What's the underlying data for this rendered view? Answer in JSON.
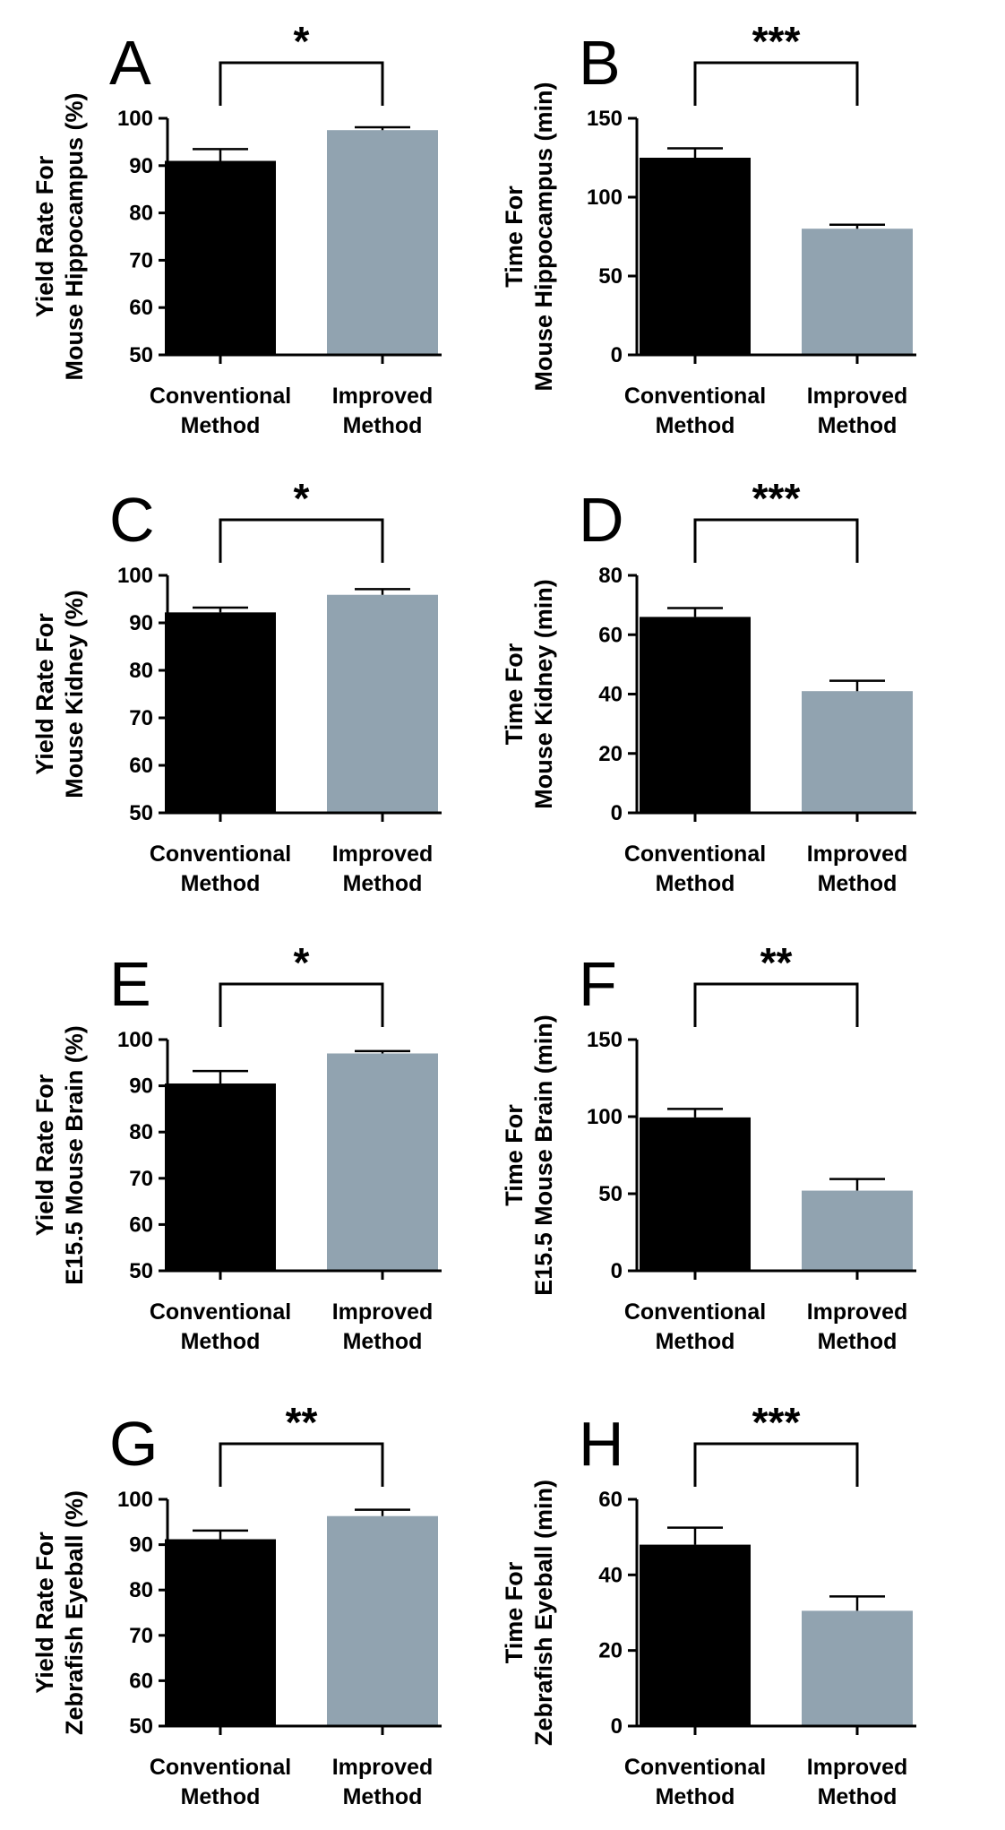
{
  "colors": {
    "conventional": "#000000",
    "improved": "#91a3b0",
    "axis": "#000000",
    "background": "#ffffff"
  },
  "chart_data": [
    {
      "panel": "A",
      "type": "bar",
      "ylabel": [
        "Yield Rate For",
        "Mouse Hippocampus (%)"
      ],
      "categories": [
        [
          "Conventional",
          "Method"
        ],
        [
          "Improved",
          "Method"
        ]
      ],
      "values": [
        91,
        97.5
      ],
      "errors": [
        2.5,
        0.6
      ],
      "ylim": [
        50,
        100
      ],
      "yticks": [
        50,
        60,
        70,
        80,
        90,
        100
      ],
      "significance": "*"
    },
    {
      "panel": "B",
      "type": "bar",
      "ylabel": [
        "Time For",
        "Mouse Hippocampus (min)"
      ],
      "categories": [
        [
          "Conventional",
          "Method"
        ],
        [
          "Improved",
          "Method"
        ]
      ],
      "values": [
        125,
        80
      ],
      "errors": [
        6,
        2.5
      ],
      "ylim": [
        0,
        150
      ],
      "yticks": [
        0,
        50,
        100,
        150
      ],
      "significance": "***"
    },
    {
      "panel": "C",
      "type": "bar",
      "ylabel": [
        "Yield Rate For",
        "Mouse Kidney (%)"
      ],
      "categories": [
        [
          "Conventional",
          "Method"
        ],
        [
          "Improved",
          "Method"
        ]
      ],
      "values": [
        92.2,
        95.9
      ],
      "errors": [
        1,
        1.2
      ],
      "ylim": [
        50,
        100
      ],
      "yticks": [
        50,
        60,
        70,
        80,
        90,
        100
      ],
      "significance": "*"
    },
    {
      "panel": "D",
      "type": "bar",
      "ylabel": [
        "Time For",
        "Mouse Kidney (min)"
      ],
      "categories": [
        [
          "Conventional",
          "Method"
        ],
        [
          "Improved",
          "Method"
        ]
      ],
      "values": [
        66,
        41
      ],
      "errors": [
        3,
        3.5
      ],
      "ylim": [
        0,
        80
      ],
      "yticks": [
        0,
        20,
        40,
        60,
        80
      ],
      "significance": "***"
    },
    {
      "panel": "E",
      "type": "bar",
      "ylabel": [
        "Yield Rate For",
        "E15.5 Mouse Brain (%)"
      ],
      "categories": [
        [
          "Conventional",
          "Method"
        ],
        [
          "Improved",
          "Method"
        ]
      ],
      "values": [
        90.5,
        97
      ],
      "errors": [
        2.7,
        0.5
      ],
      "ylim": [
        50,
        100
      ],
      "yticks": [
        50,
        60,
        70,
        80,
        90,
        100
      ],
      "significance": "*"
    },
    {
      "panel": "F",
      "type": "bar",
      "ylabel": [
        "Time For",
        "E15.5 Mouse Brain (min)"
      ],
      "categories": [
        [
          "Conventional",
          "Method"
        ],
        [
          "Improved",
          "Method"
        ]
      ],
      "values": [
        99.5,
        52
      ],
      "errors": [
        5.5,
        7.5
      ],
      "ylim": [
        0,
        150
      ],
      "yticks": [
        0,
        50,
        100,
        150
      ],
      "significance": "**"
    },
    {
      "panel": "G",
      "type": "bar",
      "ylabel": [
        "Yield Rate For",
        "Zebrafish Eyeball (%)"
      ],
      "categories": [
        [
          "Conventional",
          "Method"
        ],
        [
          "Improved",
          "Method"
        ]
      ],
      "values": [
        91.2,
        96.3
      ],
      "errors": [
        1.9,
        1.4
      ],
      "ylim": [
        50,
        100
      ],
      "yticks": [
        50,
        60,
        70,
        80,
        90,
        100
      ],
      "significance": "**"
    },
    {
      "panel": "H",
      "type": "bar",
      "ylabel": [
        "Time For",
        "Zebrafish Eyeball (min)"
      ],
      "categories": [
        [
          "Conventional",
          "Method"
        ],
        [
          "Improved",
          "Method"
        ]
      ],
      "values": [
        48,
        30.5
      ],
      "errors": [
        4.5,
        3.8
      ],
      "ylim": [
        0,
        60
      ],
      "yticks": [
        0,
        20,
        40,
        60
      ],
      "significance": "***"
    }
  ]
}
